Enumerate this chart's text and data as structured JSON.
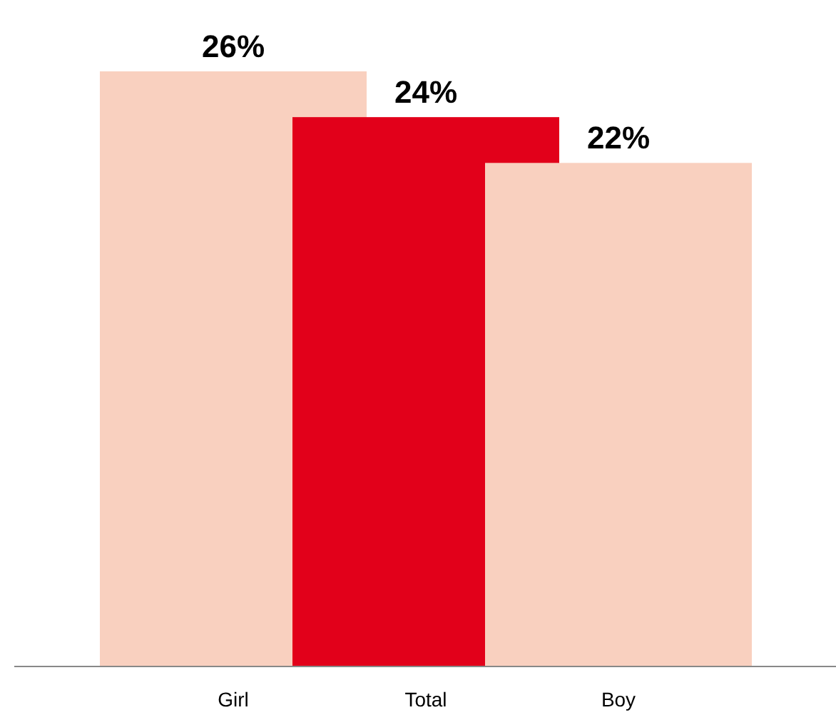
{
  "chart_data": {
    "type": "bar",
    "categories": [
      "Girl",
      "Total",
      "Boy"
    ],
    "values": [
      26,
      24,
      22
    ],
    "colors": [
      "#f9d0bf",
      "#e2001a",
      "#f9d0bf"
    ],
    "value_labels": [
      "26%",
      "24%",
      "22%"
    ]
  }
}
